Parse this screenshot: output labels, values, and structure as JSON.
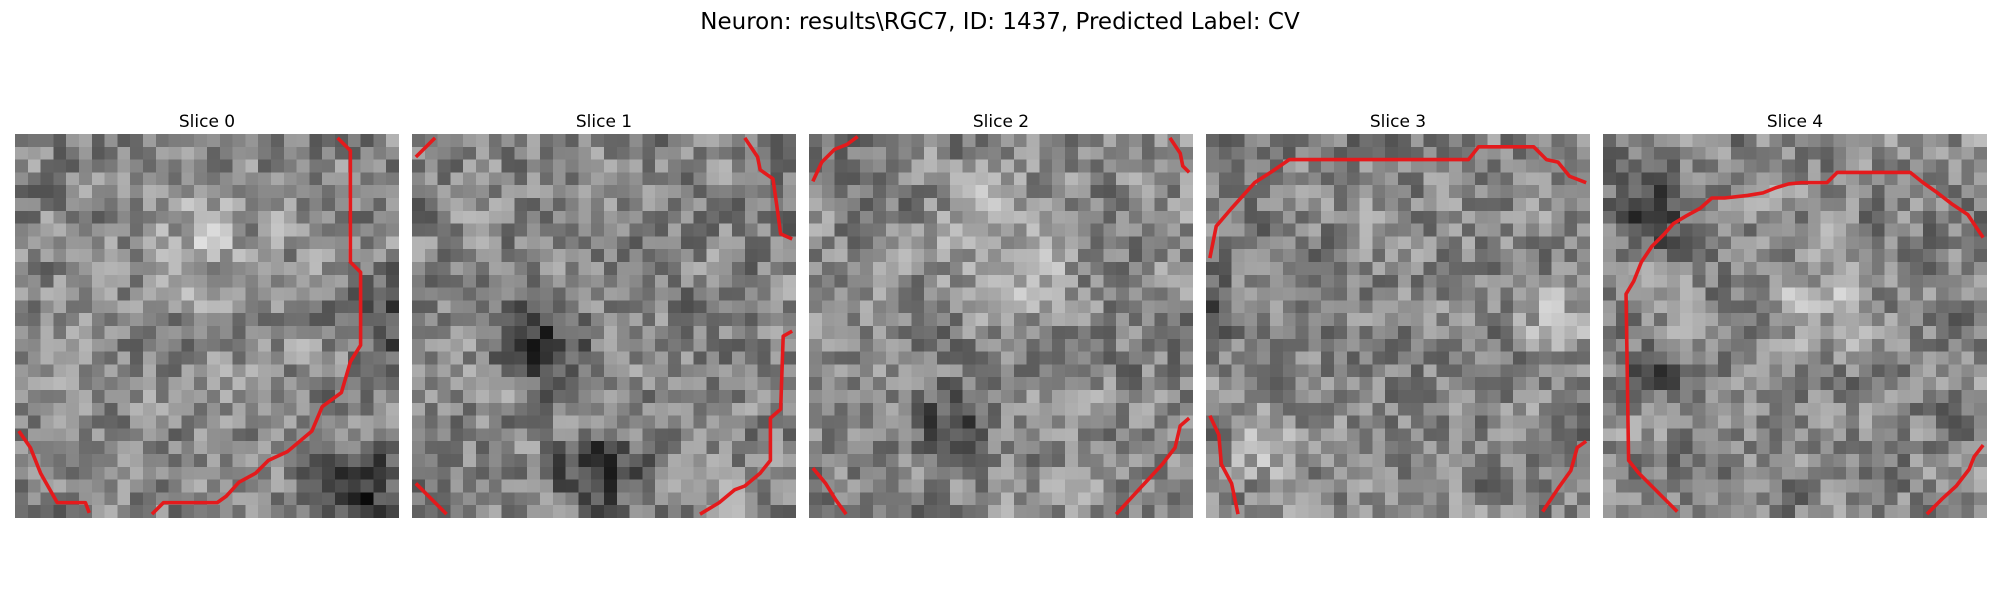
{
  "figure": {
    "title": "Neuron: results\\RGC7, ID: 1437, Predicted Label: CV",
    "contour_color": "#e41a1c",
    "colormap": "gray",
    "grid": "30x30",
    "panels": [
      {
        "title": "Slice 0",
        "seed": 11,
        "blur": 1,
        "dark": [
          [
            31,
            15,
            6
          ],
          [
            27,
            28,
            6
          ]
        ],
        "bright": [
          [
            14,
            8,
            7
          ]
        ]
      },
      {
        "title": "Slice 1",
        "seed": 23,
        "blur": 1,
        "dark": [
          [
            10,
            16,
            5
          ],
          [
            14,
            26,
            5
          ]
        ],
        "bright": []
      },
      {
        "title": "Slice 2",
        "seed": 37,
        "blur": 1,
        "dark": [
          [
            11,
            22,
            4
          ]
        ],
        "bright": [
          [
            15,
            8,
            8
          ]
        ]
      },
      {
        "title": "Slice 3",
        "seed": 53,
        "blur": 1,
        "dark": [
          [
            -1,
            13,
            4
          ]
        ],
        "bright": [
          [
            4,
            24,
            4
          ],
          [
            27,
            14,
            4
          ]
        ]
      },
      {
        "title": "Slice 4",
        "seed": 71,
        "blur": 1,
        "dark": [
          [
            3,
            6,
            4
          ],
          [
            4,
            18,
            3
          ]
        ],
        "bright": [
          [
            16,
            12,
            6
          ]
        ]
      }
    ]
  }
}
